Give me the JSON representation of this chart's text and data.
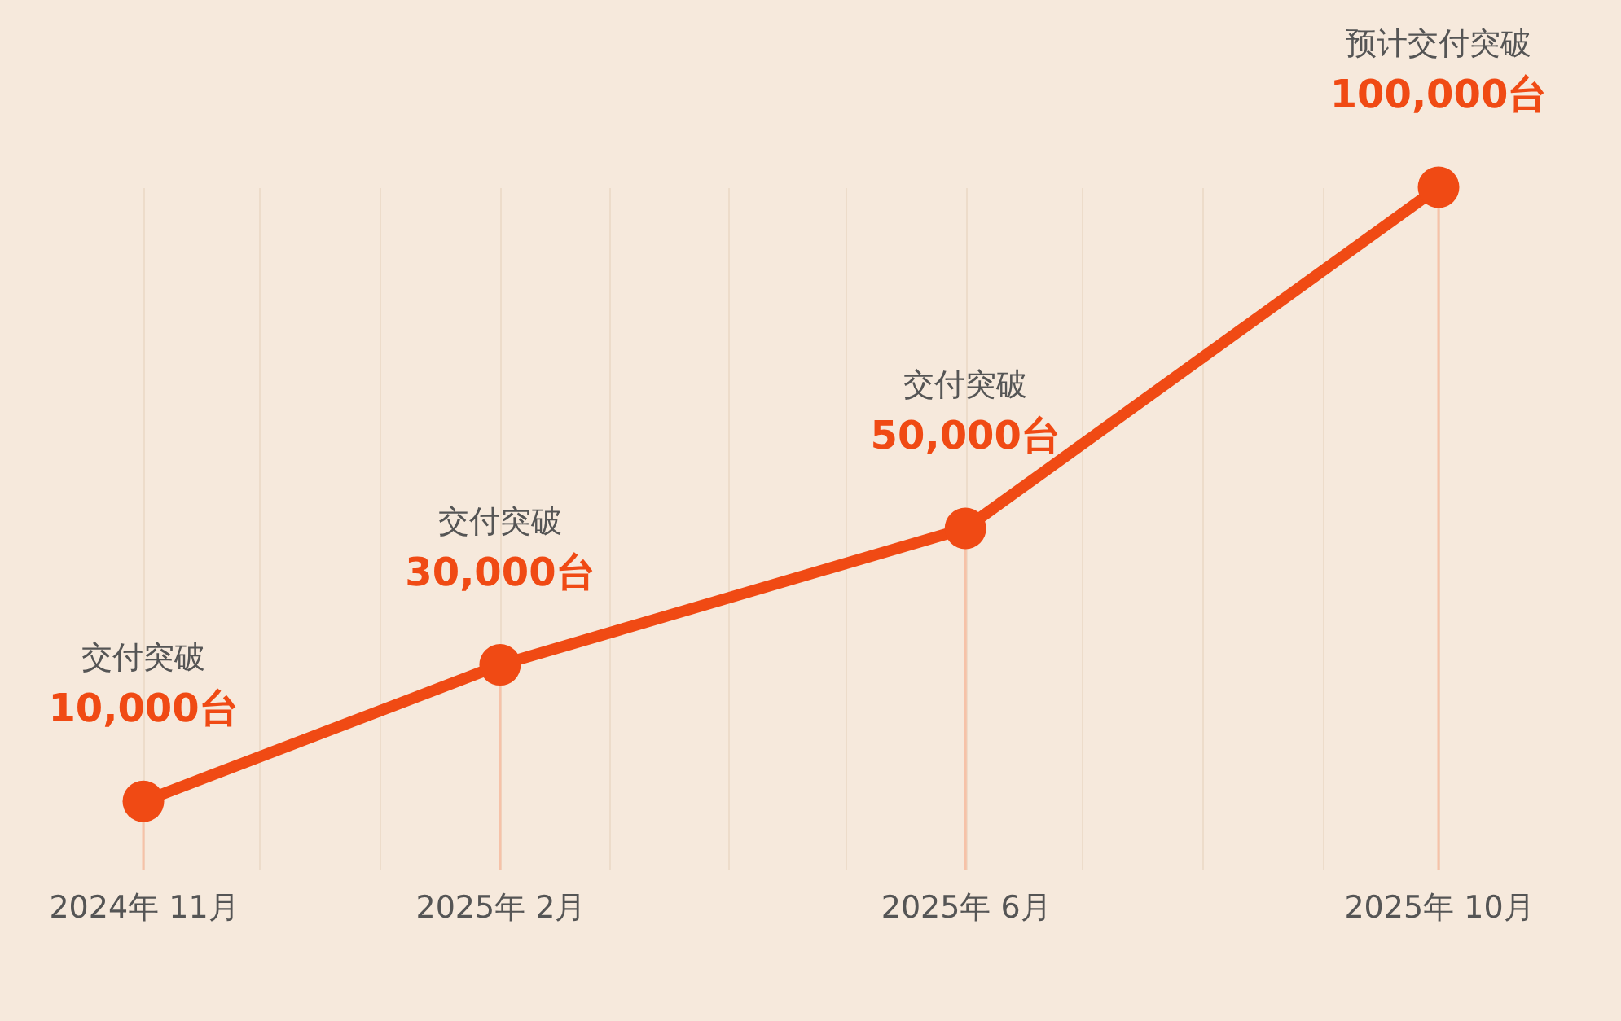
{
  "chart_data": {
    "type": "line",
    "x": [
      "2024-11",
      "2025-02",
      "2025-06",
      "2025-10"
    ],
    "series": [
      {
        "color": "#f04a14",
        "values": [
          10000,
          30000,
          50000,
          100000
        ],
        "value_labels": [
          "10,000台",
          "30,000台",
          "50,000台",
          "100,000台"
        ]
      }
    ],
    "marker": "circle",
    "line_style": "solid",
    "xlim": [
      "2024-11",
      "2025-10"
    ],
    "xticks": [
      {
        "value": "2024-11",
        "label": "2024年 11月"
      },
      {
        "value": "2024-12",
        "label": null
      },
      {
        "value": "2025-01",
        "label": null
      },
      {
        "value": "2025-02",
        "label": "2025年 2月"
      },
      {
        "value": "2025-03",
        "label": null
      },
      {
        "value": "2025-04",
        "label": null
      },
      {
        "value": "2025-05",
        "label": null
      },
      {
        "value": "2025-06",
        "label": "2025年 6月"
      },
      {
        "value": "2025-07",
        "label": null
      },
      {
        "value": "2025-08",
        "label": null
      },
      {
        "value": "2025-09",
        "label": null
      },
      {
        "value": "2025-10",
        "label": "2025年 10月"
      }
    ],
    "ylim": [
      0,
      100000
    ],
    "grid": "x",
    "tick_labels": "x",
    "ref_lines": [
      {
        "axis": "x",
        "value": "2024-11",
        "color": "#f6c2a8"
      },
      {
        "axis": "x",
        "value": "2025-02",
        "color": "#f6c2a8"
      },
      {
        "axis": "x",
        "value": "2025-06",
        "color": "#f6c2a8"
      },
      {
        "axis": "x",
        "value": "2025-10",
        "color": "#f6c2a8"
      }
    ],
    "annotations": [
      "交付突破",
      "交付突破",
      "交付突破",
      "预计交付突破"
    ]
  }
}
